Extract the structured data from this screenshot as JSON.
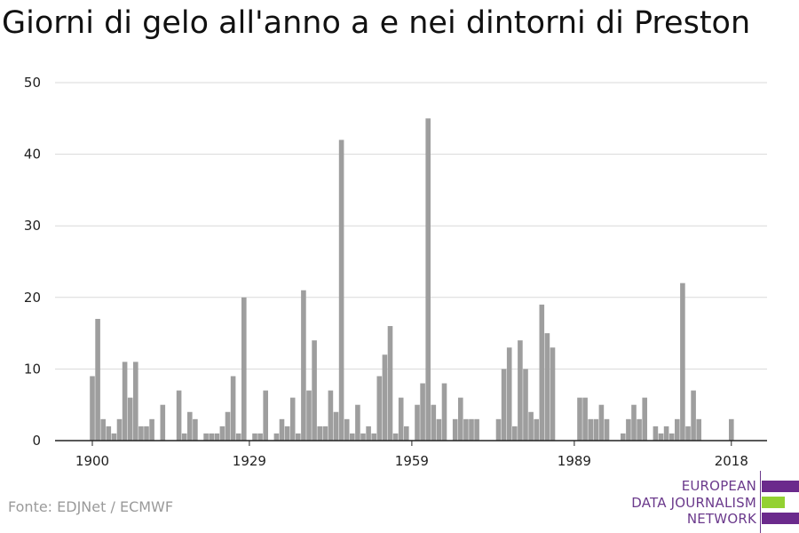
{
  "title": "Giorni di gelo all'anno a e nei dintorni di Preston",
  "source": "Fonte: EDJNet / ECMWF",
  "logo": {
    "line1": "EUROPEAN",
    "line2": "DATA JOURNALISM",
    "line3": "NETWORK"
  },
  "colors": {
    "bar": "#9e9e9e",
    "grid": "#d9d9d9",
    "axis": "#222222",
    "logo_purple": "#6b2a8c",
    "logo_green": "#93d132"
  },
  "chart_data": {
    "type": "bar",
    "title": "Giorni di gelo all'anno a e nei dintorni di Preston",
    "xlabel": "",
    "ylabel": "",
    "ylim": [
      0,
      50
    ],
    "yticks": [
      0,
      10,
      20,
      30,
      40,
      50
    ],
    "xticks": [
      1900,
      1929,
      1959,
      1989,
      2018
    ],
    "grid": true,
    "x": [
      1900,
      1901,
      1902,
      1903,
      1904,
      1905,
      1906,
      1907,
      1908,
      1909,
      1910,
      1911,
      1912,
      1913,
      1914,
      1915,
      1916,
      1917,
      1918,
      1919,
      1920,
      1921,
      1922,
      1923,
      1924,
      1925,
      1926,
      1927,
      1928,
      1929,
      1930,
      1931,
      1932,
      1933,
      1934,
      1935,
      1936,
      1937,
      1938,
      1939,
      1940,
      1941,
      1942,
      1943,
      1944,
      1945,
      1946,
      1947,
      1948,
      1949,
      1950,
      1951,
      1952,
      1953,
      1954,
      1955,
      1956,
      1957,
      1958,
      1959,
      1960,
      1961,
      1962,
      1963,
      1964,
      1965,
      1966,
      1967,
      1968,
      1969,
      1970,
      1971,
      1972,
      1973,
      1974,
      1975,
      1976,
      1977,
      1978,
      1979,
      1980,
      1981,
      1982,
      1983,
      1984,
      1985,
      1986,
      1987,
      1988,
      1989,
      1990,
      1991,
      1992,
      1993,
      1994,
      1995,
      1996,
      1997,
      1998,
      1999,
      2000,
      2001,
      2002,
      2003,
      2004,
      2005,
      2006,
      2007,
      2008,
      2009,
      2010,
      2011,
      2012,
      2013,
      2014,
      2015,
      2016,
      2017,
      2018
    ],
    "values": [
      9,
      17,
      3,
      2,
      1,
      3,
      11,
      6,
      11,
      2,
      2,
      3,
      0,
      5,
      0,
      0,
      7,
      1,
      4,
      3,
      0,
      1,
      1,
      1,
      2,
      4,
      9,
      1,
      20,
      0,
      1,
      1,
      7,
      0,
      1,
      3,
      2,
      6,
      1,
      21,
      7,
      14,
      2,
      2,
      7,
      4,
      42,
      3,
      1,
      5,
      1,
      2,
      1,
      9,
      12,
      16,
      1,
      6,
      2,
      0,
      5,
      8,
      45,
      5,
      3,
      8,
      0,
      3,
      6,
      3,
      3,
      3,
      0,
      0,
      0,
      3,
      10,
      13,
      2,
      14,
      10,
      4,
      3,
      19,
      15,
      13,
      0,
      0,
      0,
      0,
      6,
      6,
      3,
      3,
      5,
      3,
      0,
      0,
      1,
      3,
      5,
      3,
      6,
      0,
      2,
      1,
      2,
      1,
      3,
      22,
      2,
      7,
      3,
      0,
      0,
      0,
      0,
      0,
      3
    ]
  }
}
